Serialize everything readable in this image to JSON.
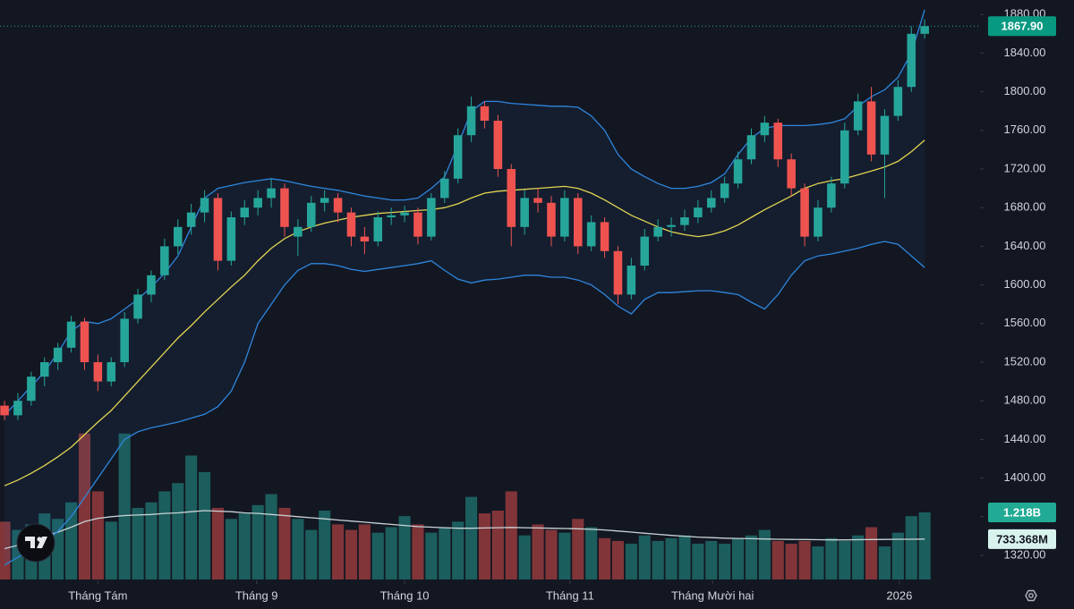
{
  "chart_data": {
    "type": "candlestick",
    "xlim": [
      -0.34,
      73.15
    ],
    "xticks": [
      {
        "value": 7,
        "label": "Tháng Tám"
      },
      {
        "value": 18.9,
        "label": "Tháng 9"
      },
      {
        "value": 30,
        "label": "Tháng 10"
      },
      {
        "value": 42.4,
        "label": "Tháng 11"
      },
      {
        "value": 53.1,
        "label": "Tháng Mười hai"
      },
      {
        "value": 67.1,
        "label": "2026"
      }
    ],
    "ylim": [
      1295,
      1895
    ],
    "yticks": [
      {
        "value": 1320,
        "label": "1320.00"
      },
      {
        "value": 1360,
        "label": "1360.00"
      },
      {
        "value": 1400,
        "label": "1400.00"
      },
      {
        "value": 1440,
        "label": "1440.00"
      },
      {
        "value": 1480,
        "label": "1480.00"
      },
      {
        "value": 1520,
        "label": "1520.00"
      },
      {
        "value": 1560,
        "label": "1560.00"
      },
      {
        "value": 1600,
        "label": "1600.00"
      },
      {
        "value": 1640,
        "label": "1640.00"
      },
      {
        "value": 1680,
        "label": "1680.00"
      },
      {
        "value": 1720,
        "label": "1720.00"
      },
      {
        "value": 1760,
        "label": "1760.00"
      },
      {
        "value": 1800,
        "label": "1800.00"
      },
      {
        "value": 1840,
        "label": "1840.00"
      },
      {
        "value": 1880,
        "label": "1880.00"
      }
    ],
    "y2lim": [
      0,
      10520
    ],
    "colors": {
      "up": "#26a69a",
      "down": "#ef5350",
      "band": "#2f86dd",
      "middle": "#e3d451",
      "volume_ma": "#c9d3d6"
    },
    "candles": [
      [
        1475,
        1480,
        1460,
        1465
      ],
      [
        1465,
        1488,
        1460,
        1480
      ],
      [
        1480,
        1510,
        1475,
        1505
      ],
      [
        1505,
        1525,
        1495,
        1520
      ],
      [
        1520,
        1540,
        1512,
        1535
      ],
      [
        1535,
        1568,
        1530,
        1562
      ],
      [
        1562,
        1566,
        1512,
        1520
      ],
      [
        1520,
        1528,
        1490,
        1500
      ],
      [
        1500,
        1525,
        1495,
        1520
      ],
      [
        1520,
        1572,
        1515,
        1565
      ],
      [
        1565,
        1596,
        1560,
        1590
      ],
      [
        1590,
        1615,
        1582,
        1610
      ],
      [
        1610,
        1648,
        1605,
        1640
      ],
      [
        1640,
        1668,
        1632,
        1660
      ],
      [
        1660,
        1684,
        1652,
        1675
      ],
      [
        1675,
        1698,
        1665,
        1690
      ],
      [
        1690,
        1695,
        1615,
        1625
      ],
      [
        1625,
        1676,
        1620,
        1670
      ],
      [
        1670,
        1688,
        1662,
        1680
      ],
      [
        1680,
        1698,
        1672,
        1690
      ],
      [
        1690,
        1710,
        1680,
        1700
      ],
      [
        1700,
        1705,
        1650,
        1660
      ],
      [
        1650,
        1668,
        1630,
        1660
      ],
      [
        1660,
        1692,
        1655,
        1685
      ],
      [
        1685,
        1698,
        1676,
        1690
      ],
      [
        1690,
        1695,
        1665,
        1675
      ],
      [
        1675,
        1680,
        1640,
        1650
      ],
      [
        1650,
        1660,
        1632,
        1645
      ],
      [
        1645,
        1676,
        1640,
        1670
      ],
      [
        1670,
        1680,
        1662,
        1672
      ],
      [
        1672,
        1682,
        1665,
        1675
      ],
      [
        1675,
        1680,
        1642,
        1650
      ],
      [
        1650,
        1695,
        1646,
        1690
      ],
      [
        1690,
        1718,
        1685,
        1710
      ],
      [
        1710,
        1762,
        1705,
        1755
      ],
      [
        1755,
        1795,
        1748,
        1785
      ],
      [
        1785,
        1790,
        1762,
        1770
      ],
      [
        1770,
        1776,
        1712,
        1720
      ],
      [
        1720,
        1725,
        1640,
        1660
      ],
      [
        1660,
        1698,
        1652,
        1690
      ],
      [
        1690,
        1700,
        1675,
        1685
      ],
      [
        1685,
        1692,
        1640,
        1650
      ],
      [
        1650,
        1698,
        1645,
        1690
      ],
      [
        1690,
        1695,
        1632,
        1640
      ],
      [
        1640,
        1672,
        1635,
        1665
      ],
      [
        1665,
        1670,
        1628,
        1635
      ],
      [
        1635,
        1640,
        1580,
        1590
      ],
      [
        1590,
        1628,
        1585,
        1620
      ],
      [
        1620,
        1658,
        1615,
        1650
      ],
      [
        1650,
        1668,
        1645,
        1660
      ],
      [
        1660,
        1670,
        1650,
        1662
      ],
      [
        1662,
        1678,
        1656,
        1670
      ],
      [
        1670,
        1688,
        1664,
        1680
      ],
      [
        1680,
        1698,
        1675,
        1690
      ],
      [
        1690,
        1712,
        1685,
        1705
      ],
      [
        1705,
        1738,
        1700,
        1730
      ],
      [
        1730,
        1762,
        1725,
        1755
      ],
      [
        1755,
        1775,
        1748,
        1768
      ],
      [
        1768,
        1772,
        1722,
        1730
      ],
      [
        1730,
        1736,
        1692,
        1700
      ],
      [
        1700,
        1705,
        1640,
        1650
      ],
      [
        1650,
        1688,
        1645,
        1680
      ],
      [
        1680,
        1712,
        1675,
        1705
      ],
      [
        1705,
        1768,
        1700,
        1760
      ],
      [
        1760,
        1798,
        1755,
        1790
      ],
      [
        1790,
        1805,
        1728,
        1735
      ],
      [
        1735,
        1782,
        1690,
        1775
      ],
      [
        1775,
        1812,
        1770,
        1805
      ],
      [
        1805,
        1868,
        1800,
        1860
      ],
      [
        1860,
        1875,
        1855,
        1867.9
      ]
    ],
    "bands": {
      "upper": [
        1465,
        1480,
        1495,
        1510,
        1530,
        1552,
        1562,
        1560,
        1565,
        1575,
        1585,
        1598,
        1612,
        1630,
        1660,
        1690,
        1700,
        1703,
        1706,
        1708,
        1710,
        1708,
        1705,
        1702,
        1700,
        1698,
        1695,
        1692,
        1690,
        1688,
        1688,
        1690,
        1700,
        1712,
        1745,
        1780,
        1790,
        1790,
        1788,
        1787,
        1786,
        1785,
        1785,
        1784,
        1775,
        1760,
        1735,
        1720,
        1712,
        1705,
        1700,
        1700,
        1702,
        1706,
        1715,
        1735,
        1752,
        1762,
        1765,
        1765,
        1765,
        1766,
        1768,
        1772,
        1785,
        1795,
        1802,
        1815,
        1840,
        1885
      ],
      "middle": [
        1392,
        1398,
        1405,
        1413,
        1422,
        1432,
        1445,
        1458,
        1470,
        1485,
        1500,
        1515,
        1530,
        1545,
        1558,
        1572,
        1585,
        1598,
        1610,
        1625,
        1638,
        1648,
        1655,
        1660,
        1664,
        1667,
        1670,
        1672,
        1674,
        1675,
        1676,
        1677,
        1678,
        1680,
        1684,
        1690,
        1695,
        1697,
        1698,
        1699,
        1700,
        1701,
        1702,
        1700,
        1695,
        1688,
        1680,
        1672,
        1666,
        1660,
        1655,
        1652,
        1650,
        1652,
        1656,
        1662,
        1670,
        1678,
        1685,
        1692,
        1700,
        1705,
        1708,
        1710,
        1714,
        1718,
        1722,
        1728,
        1738,
        1750
      ],
      "lower": [
        1310,
        1318,
        1325,
        1333,
        1345,
        1360,
        1380,
        1400,
        1420,
        1440,
        1448,
        1452,
        1455,
        1458,
        1462,
        1466,
        1474,
        1490,
        1520,
        1560,
        1580,
        1600,
        1615,
        1622,
        1622,
        1620,
        1616,
        1614,
        1616,
        1618,
        1620,
        1622,
        1625,
        1615,
        1606,
        1602,
        1605,
        1606,
        1608,
        1610,
        1610,
        1608,
        1608,
        1605,
        1600,
        1590,
        1578,
        1570,
        1585,
        1592,
        1592,
        1593,
        1594,
        1594,
        1592,
        1590,
        1582,
        1575,
        1590,
        1610,
        1625,
        1630,
        1632,
        1635,
        1638,
        1642,
        1645,
        1642,
        1630,
        1618
      ]
    },
    "volumes": [
      1050,
      900,
      1000,
      1200,
      1100,
      1400,
      2650,
      1600,
      1050,
      2650,
      1300,
      1400,
      1600,
      1750,
      2250,
      1950,
      1300,
      1100,
      1200,
      1350,
      1550,
      1300,
      1100,
      900,
      1250,
      1000,
      900,
      1000,
      850,
      950,
      1150,
      1000,
      850,
      950,
      1050,
      1500,
      1200,
      1250,
      1600,
      800,
      1000,
      900,
      850,
      1100,
      950,
      750,
      700,
      650,
      800,
      700,
      750,
      800,
      650,
      700,
      650,
      750,
      800,
      900,
      700,
      650,
      700,
      600,
      750,
      700,
      800,
      950,
      600,
      850,
      1150,
      1218
    ],
    "volume_ma": [
      560,
      620,
      700,
      780,
      860,
      950,
      1050,
      1110,
      1140,
      1160,
      1170,
      1180,
      1200,
      1210,
      1230,
      1250,
      1240,
      1230,
      1210,
      1200,
      1180,
      1160,
      1140,
      1120,
      1100,
      1080,
      1060,
      1040,
      1020,
      1000,
      980,
      960,
      950,
      940,
      930,
      930,
      935,
      940,
      945,
      940,
      935,
      930,
      925,
      920,
      910,
      900,
      880,
      860,
      840,
      820,
      800,
      785,
      770,
      760,
      750,
      745,
      740,
      735,
      730,
      728,
      725,
      722,
      720,
      720,
      722,
      725,
      728,
      730,
      731,
      733.368
    ],
    "last_labels": {
      "close": "1867.90",
      "volume": "1.218B",
      "volume_ma": "733.368M"
    }
  }
}
